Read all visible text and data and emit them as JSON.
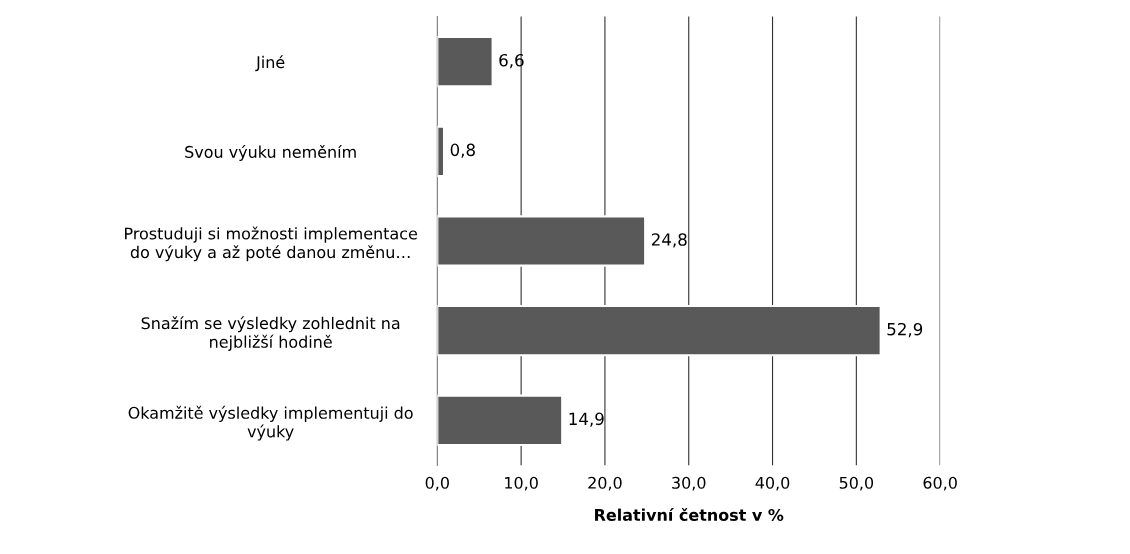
{
  "chart_data": {
    "type": "bar",
    "orientation": "horizontal",
    "categories": [
      "Jiné",
      "Svou výuku neměním",
      "Prostuduji si možnosti implementace\ndo výuky a až poté danou změnu…",
      "Snažím se výsledky zohlednit na\nnejbližší hodině",
      "Okamžitě výsledky implementuji do\nvýuky"
    ],
    "values": [
      6.6,
      0.8,
      24.8,
      52.9,
      14.9
    ],
    "value_labels": [
      "6,6",
      "0,8",
      "24,8",
      "52,9",
      "14,9"
    ],
    "color": "#595959",
    "xlabel": "Relativní četnost v %",
    "xlim": [
      0,
      60
    ],
    "xticks": [
      {
        "value": 0,
        "label": "0,0"
      },
      {
        "value": 10,
        "label": "10,0"
      },
      {
        "value": 20,
        "label": "20,0"
      },
      {
        "value": 30,
        "label": "30,0"
      },
      {
        "value": 40,
        "label": "40,0"
      },
      {
        "value": 50,
        "label": "50,0"
      },
      {
        "value": 60,
        "label": "60,0"
      }
    ],
    "grid": "x",
    "legend": false
  }
}
